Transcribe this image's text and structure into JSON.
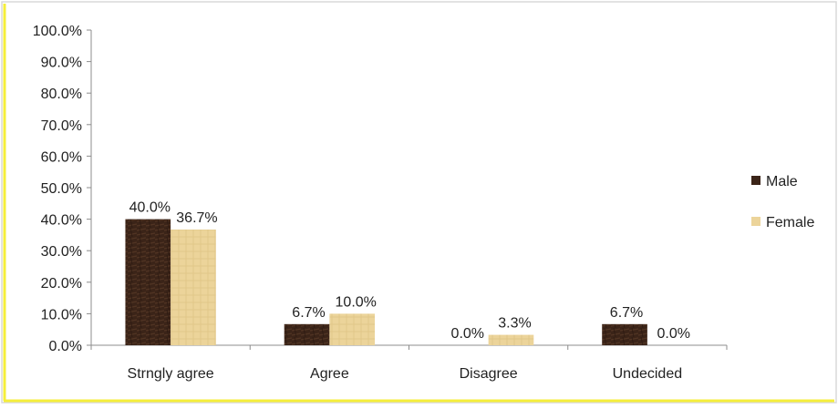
{
  "chart_data": {
    "type": "bar",
    "categories": [
      "Strngly agree",
      "Agree",
      "Disagree",
      "Undecided"
    ],
    "series": [
      {
        "name": "Male",
        "values": [
          40.0,
          6.7,
          0.0,
          6.7
        ],
        "labels": [
          "40.0%",
          "6.7%",
          "0.0%",
          "6.7%"
        ],
        "color": "#3b2418"
      },
      {
        "name": "Female",
        "values": [
          36.7,
          10.0,
          3.3,
          0.0
        ],
        "labels": [
          "36.7%",
          "10.0%",
          "3.3%",
          "0.0%"
        ],
        "color": "#ecd49a"
      }
    ],
    "yticks": [
      "0.0%",
      "10.0%",
      "20.0%",
      "30.0%",
      "40.0%",
      "50.0%",
      "60.0%",
      "70.0%",
      "80.0%",
      "90.0%",
      "100.0%"
    ],
    "ylim": [
      0,
      100
    ],
    "grid": false,
    "legend_position": "right",
    "frame_border_color": "#f5ee3a"
  }
}
